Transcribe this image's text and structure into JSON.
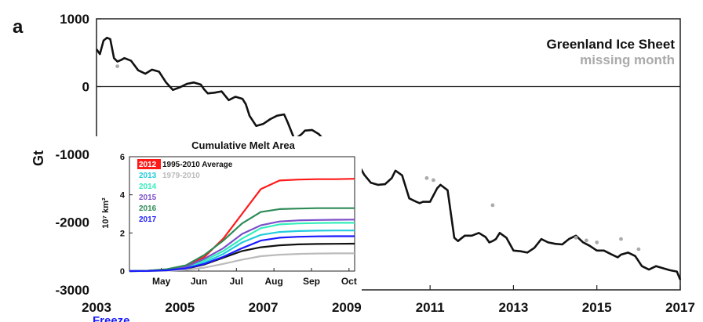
{
  "panel_label": "a",
  "footer_label": "Freeze",
  "chart_data": [
    {
      "type": "line",
      "title": "",
      "xlabel": "",
      "ylabel": "Gt",
      "xlim": [
        2003,
        2017
      ],
      "ylim": [
        -3000,
        1000
      ],
      "xticks": [
        2003,
        2005,
        2007,
        2009,
        2011,
        2013,
        2015,
        2017
      ],
      "yticks": [
        -3000,
        -2000,
        -1000,
        0,
        1000
      ],
      "zero_line": true,
      "grid": false,
      "legend_position": "top-right",
      "legend": [
        {
          "label": "Greenland Ice Sheet",
          "color": "#111111"
        },
        {
          "label": "missing month",
          "color": "#aaaaaa"
        }
      ],
      "series": [
        {
          "name": "Greenland Ice Sheet",
          "color": "#111111",
          "x": [
            2003.0,
            2003.08,
            2003.17,
            2003.25,
            2003.33,
            2003.42,
            2003.5,
            2003.58,
            2003.67,
            2003.83,
            2004.0,
            2004.17,
            2004.33,
            2004.5,
            2004.67,
            2004.83,
            2005.0,
            2005.17,
            2005.33,
            2005.5,
            2005.58,
            2005.67,
            2005.83,
            2006.0,
            2006.17,
            2006.33,
            2006.5,
            2006.58,
            2006.67,
            2006.83,
            2007.0,
            2007.17,
            2007.33,
            2007.5,
            2007.58,
            2007.75,
            2007.92,
            2008.0,
            2008.17,
            2008.33,
            2008.5,
            2008.67,
            2008.83,
            2009.0,
            2009.17,
            2009.33,
            2009.42,
            2009.58,
            2009.75,
            2009.92,
            2010.08,
            2010.17,
            2010.33,
            2010.5,
            2010.67,
            2010.75,
            2010.83,
            2011.0,
            2011.17,
            2011.25,
            2011.42,
            2011.58,
            2011.67,
            2011.83,
            2012.0,
            2012.17,
            2012.33,
            2012.42,
            2012.5,
            2012.58,
            2012.67,
            2012.83,
            2013.0,
            2013.17,
            2013.33,
            2013.5,
            2013.67,
            2013.83,
            2014.0,
            2014.17,
            2014.33,
            2014.5,
            2014.67,
            2014.83,
            2015.0,
            2015.17,
            2015.33,
            2015.5,
            2015.58,
            2015.75,
            2015.92,
            2016.08,
            2016.25,
            2016.42,
            2016.58,
            2016.75,
            2016.92,
            2017.0
          ],
          "y": [
            550,
            480,
            680,
            720,
            700,
            420,
            370,
            390,
            420,
            380,
            240,
            190,
            250,
            220,
            60,
            -50,
            -10,
            40,
            60,
            30,
            -40,
            -100,
            -90,
            -70,
            -200,
            -150,
            -180,
            -260,
            -430,
            -580,
            -550,
            -480,
            -430,
            -410,
            -520,
            -780,
            -700,
            -650,
            -640,
            -700,
            -820,
            -940,
            -880,
            -950,
            -1030,
            -1200,
            -1300,
            -1420,
            -1450,
            -1440,
            -1350,
            -1240,
            -1310,
            -1650,
            -1700,
            -1720,
            -1700,
            -1700,
            -1500,
            -1450,
            -1530,
            -2230,
            -2280,
            -2200,
            -2200,
            -2160,
            -2220,
            -2300,
            -2280,
            -2250,
            -2160,
            -2230,
            -2420,
            -2430,
            -2450,
            -2380,
            -2250,
            -2300,
            -2320,
            -2330,
            -2250,
            -2200,
            -2300,
            -2350,
            -2420,
            -2420,
            -2470,
            -2520,
            -2480,
            -2450,
            -2500,
            -2650,
            -2700,
            -2650,
            -2680,
            -2710,
            -2730,
            -2850
          ]
        },
        {
          "name": "missing month",
          "color": "#aaaaaa",
          "x": [
            2003.5,
            2010.92,
            2011.08,
            2012.5,
            2014.5,
            2014.75,
            2015.0,
            2015.58,
            2016.0
          ],
          "y": [
            300,
            -1350,
            -1380,
            -1750,
            -2230,
            -2270,
            -2300,
            -2250,
            -2400
          ]
        }
      ]
    },
    {
      "type": "line",
      "title": "Cumulative Melt Area",
      "xlabel": "",
      "ylabel": "10⁷ km²",
      "xlim": [
        0,
        6
      ],
      "ylim": [
        0,
        6
      ],
      "x_tick_labels": [
        "May",
        "Jun",
        "Jul",
        "Aug",
        "Sep",
        "Oct"
      ],
      "yticks": [
        0,
        2,
        4,
        6
      ],
      "legend_position": "top-left",
      "series": [
        {
          "name": "2012",
          "color": "#ff1a1a",
          "x": [
            0,
            0.5,
            1,
            1.5,
            2,
            2.5,
            3,
            3.5,
            4,
            4.5,
            5,
            5.5,
            6
          ],
          "y": [
            0,
            0.02,
            0.08,
            0.25,
            0.75,
            1.7,
            3.0,
            4.3,
            4.75,
            4.8,
            4.82,
            4.82,
            4.84
          ]
        },
        {
          "name": "1995-2010 Average",
          "color": "#111111",
          "x": [
            0,
            0.5,
            1,
            1.5,
            2,
            2.5,
            3,
            3.5,
            4,
            4.5,
            5,
            5.5,
            6
          ],
          "y": [
            0,
            0.01,
            0.04,
            0.12,
            0.35,
            0.7,
            1.05,
            1.25,
            1.35,
            1.4,
            1.42,
            1.43,
            1.44
          ]
        },
        {
          "name": "2013",
          "color": "#22ccdd",
          "x": [
            0,
            0.5,
            1,
            1.5,
            2,
            2.5,
            3,
            3.5,
            4,
            4.5,
            5,
            5.5,
            6
          ],
          "y": [
            0,
            0.01,
            0.05,
            0.15,
            0.45,
            0.9,
            1.5,
            1.9,
            2.05,
            2.1,
            2.12,
            2.13,
            2.13
          ]
        },
        {
          "name": "1979-2010",
          "color": "#bbbbbb",
          "x": [
            0,
            0.5,
            1,
            1.5,
            2,
            2.5,
            3,
            3.5,
            4,
            4.5,
            5,
            5.5,
            6
          ],
          "y": [
            0,
            0.0,
            0.02,
            0.06,
            0.18,
            0.38,
            0.6,
            0.78,
            0.86,
            0.9,
            0.92,
            0.93,
            0.93
          ]
        },
        {
          "name": "2014",
          "color": "#33eebb",
          "x": [
            0,
            0.5,
            1,
            1.5,
            2,
            2.5,
            3,
            3.5,
            4,
            4.5,
            5,
            5.5,
            6
          ],
          "y": [
            0,
            0.01,
            0.06,
            0.2,
            0.55,
            1.05,
            1.7,
            2.25,
            2.45,
            2.5,
            2.52,
            2.53,
            2.53
          ]
        },
        {
          "name": "2015",
          "color": "#7b4fc9",
          "x": [
            0,
            0.5,
            1,
            1.5,
            2,
            2.5,
            3,
            3.5,
            4,
            4.5,
            5,
            5.5,
            6
          ],
          "y": [
            0,
            0.01,
            0.07,
            0.22,
            0.65,
            1.2,
            1.95,
            2.4,
            2.6,
            2.66,
            2.68,
            2.69,
            2.7
          ]
        },
        {
          "name": "2016",
          "color": "#2e8b57",
          "x": [
            0,
            0.5,
            1,
            1.5,
            2,
            2.5,
            3,
            3.5,
            4,
            4.5,
            5,
            5.5,
            6
          ],
          "y": [
            0,
            0.02,
            0.1,
            0.3,
            0.85,
            1.6,
            2.5,
            3.1,
            3.25,
            3.28,
            3.3,
            3.3,
            3.3
          ]
        },
        {
          "name": "2017",
          "color": "#1a1aff",
          "x": [
            0,
            0.5,
            1,
            1.5,
            2,
            2.5,
            3,
            3.5,
            4,
            4.5,
            5,
            5.5,
            6
          ],
          "y": [
            0,
            0.01,
            0.04,
            0.14,
            0.38,
            0.75,
            1.2,
            1.6,
            1.75,
            1.8,
            1.82,
            1.83,
            1.83
          ]
        }
      ]
    }
  ]
}
